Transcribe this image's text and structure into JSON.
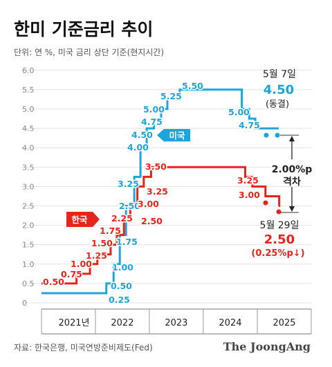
{
  "title": "한미 기준금리 추이",
  "subtitle": "단위: 연 %, 미국 금리 상단 기준(현지시간)",
  "source": "자료: 한국은행, 미국연방준비제도(Fed)",
  "brand": "The JoongAng",
  "chart_data": {
    "type": "line",
    "step": true,
    "x_ticks": [
      "2021년",
      "2022",
      "2023",
      "2024",
      "2025"
    ],
    "y_ticks": [
      "6.0",
      "5.5",
      "5.0",
      "4.5",
      "4.0",
      "3.5",
      "3.0",
      "2.5",
      "2.0",
      "1.5",
      "1.0",
      "0.5",
      "0"
    ],
    "ylim": [
      0,
      6.0
    ],
    "grid": "horizontal",
    "colors": {
      "us": "#1aa6dc",
      "korea": "#e8231a"
    },
    "series": [
      {
        "name": "미국",
        "color": "#1aa6dc",
        "points": [
          [
            "2021-01-01",
            0.25
          ],
          [
            "2022-03-16",
            0.5
          ],
          [
            "2022-05-04",
            1.0
          ],
          [
            "2022-06-15",
            1.75
          ],
          [
            "2022-07-27",
            2.5
          ],
          [
            "2022-09-21",
            3.25
          ],
          [
            "2022-11-02",
            4.0
          ],
          [
            "2022-12-14",
            4.5
          ],
          [
            "2023-02-01",
            4.75
          ],
          [
            "2023-03-22",
            5.0
          ],
          [
            "2023-05-03",
            5.25
          ],
          [
            "2023-07-26",
            5.5
          ],
          [
            "2024-09-18",
            5.0
          ],
          [
            "2024-11-07",
            4.75
          ],
          [
            "2024-12-18",
            4.5
          ],
          [
            "2025-05-07",
            4.5
          ]
        ],
        "labels": [
          "0.25",
          "0.50",
          "1.00",
          "1.75",
          "2.50",
          "3.25",
          "4.00",
          "4.50",
          "4.75",
          "5.00",
          "5.25",
          "5.50",
          "5.00",
          "4.75"
        ]
      },
      {
        "name": "한국",
        "color": "#e8231a",
        "points": [
          [
            "2021-01-01",
            0.5
          ],
          [
            "2021-08-26",
            0.75
          ],
          [
            "2021-11-25",
            1.0
          ],
          [
            "2022-01-14",
            1.25
          ],
          [
            "2022-04-14",
            1.5
          ],
          [
            "2022-05-26",
            1.75
          ],
          [
            "2022-07-13",
            2.25
          ],
          [
            "2022-08-25",
            2.5
          ],
          [
            "2022-10-12",
            3.0
          ],
          [
            "2022-11-24",
            3.25
          ],
          [
            "2023-01-13",
            3.5
          ],
          [
            "2024-10-11",
            3.25
          ],
          [
            "2024-11-28",
            3.0
          ],
          [
            "2025-02-25",
            2.75
          ],
          [
            "2025-05-29",
            2.5
          ]
        ],
        "labels": [
          "0.50",
          "0.75",
          "1.00",
          "1.25",
          "1.50",
          "1.75",
          "2.25",
          "2.50",
          "3.00",
          "3.25",
          "3.50",
          "3.25",
          "3.00"
        ]
      }
    ],
    "annotations": {
      "us_date": "5월 7일",
      "us_value": "4.50",
      "us_note": "(동결)",
      "gap_value": "2.00%p",
      "gap_label": "격차",
      "kr_date": "5월 29일",
      "kr_value": "2.50",
      "kr_note": "(0.25%p↓)"
    }
  }
}
